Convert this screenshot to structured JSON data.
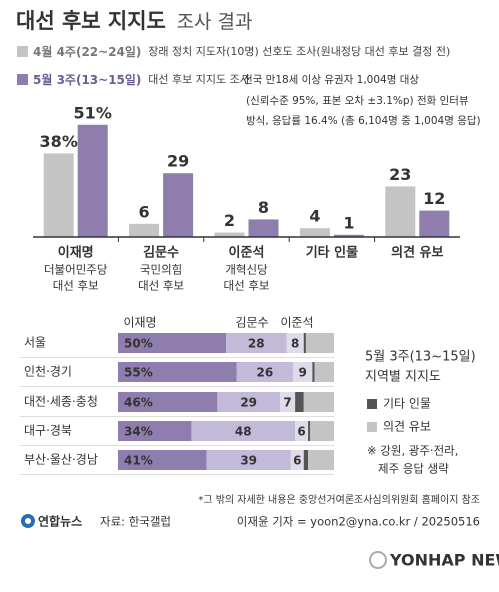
{
  "header": {
    "title": "대선 후보 지지도",
    "title_light": "조사 결과"
  },
  "chart_data": [
    {
      "type": "bar",
      "categories": [
        "이재명",
        "김문수",
        "이준석",
        "기타 인물",
        "의견 유보"
      ],
      "parties": [
        [
          "더불어민주당",
          "대선 후보"
        ],
        [
          "국민의힘",
          "대선 후보"
        ],
        [
          "개혁신당",
          "대선 후보"
        ]
      ],
      "series": [
        {
          "name": "4월 4주(22~24일)",
          "description": "장래 정치 지도자(10명) 선호도 조사(원내정당 대선 후보 결정 전)",
          "color": "#c4c4c4",
          "label_color": "#a6a6a6",
          "values": [
            38,
            6,
            2,
            4,
            23
          ],
          "value_labels": [
            "38%",
            "6",
            "2",
            "4",
            "23"
          ]
        },
        {
          "name": "5월 3주(13~15일)",
          "description": "대선 후보 지지도 조사",
          "color": "#8f7dae",
          "label_color": "#7d6a9e",
          "values": [
            51,
            29,
            8,
            1,
            12
          ],
          "value_labels": [
            "51%",
            "29",
            "8",
            "1",
            "12"
          ]
        }
      ],
      "note": [
        "전국 만18세 이상 유권자 1,004명 대상",
        "(신뢰수준 95%, 표본 오차 ±3.1%p) 전화 인터뷰",
        "방식, 응답률 16.4% (총 6,104명 중 1,004명 응답)"
      ],
      "ylim": [
        0,
        55
      ]
    },
    {
      "type": "stacked_hbar",
      "title": [
        "5월 3주(13~15일)",
        "지역별 지지도"
      ],
      "categories": [
        "서울",
        "인천·경기",
        "대전·세종·충청",
        "대구·경북",
        "부산·울산·경남"
      ],
      "series": [
        {
          "name": "이재명",
          "color": "#8f7dae",
          "values": [
            50,
            55,
            46,
            34,
            41
          ],
          "value_labels": [
            "50%",
            "55%",
            "46%",
            "34%",
            "41%"
          ]
        },
        {
          "name": "김문수",
          "color": "#c3b9d8",
          "values": [
            28,
            26,
            29,
            48,
            39
          ]
        },
        {
          "name": "이준석",
          "color": "#e0dbeb",
          "values": [
            8,
            9,
            7,
            6,
            6
          ]
        },
        {
          "name": "기타 인물",
          "color": "#555555",
          "values": [
            1,
            1,
            4,
            1,
            2
          ]
        },
        {
          "name": "의견 유보",
          "color": "#c4c4c4",
          "values": [
            13,
            9,
            14,
            11,
            12
          ]
        }
      ],
      "note": [
        "※ 강원, 광주·전라,",
        "제주 응답 생략"
      ],
      "xlim": [
        0,
        100
      ]
    }
  ],
  "footer": {
    "note": "*그 밖의 자세한 내용은 중앙선거여론조사심의위원회 홈페이지 참조",
    "brand": "연합뉴스",
    "source": "자료: 한국갤럽",
    "credit": "이재윤 기자 = yoon2@yna.co.kr / 20250516",
    "watermark": "YONHAP NEWS"
  }
}
